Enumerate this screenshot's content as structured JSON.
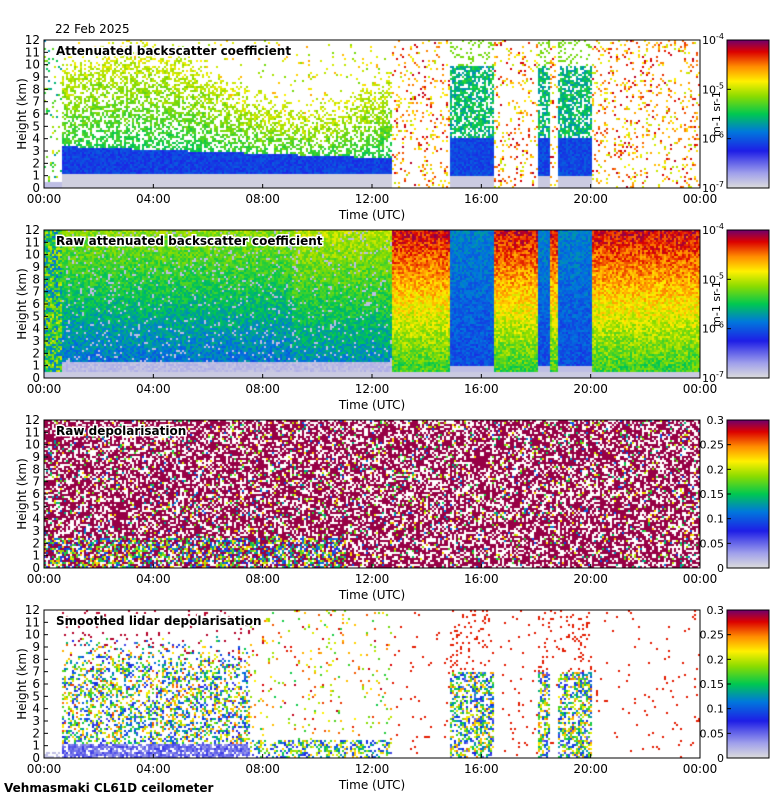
{
  "date": "22 Feb 2025",
  "footer": "Vehmasmaki CL61D ceilometer",
  "chart_data": [
    {
      "type": "heatmap",
      "title": "Attenuated backscatter coefficient",
      "xlabel": "Time (UTC)",
      "ylabel": "Height (km)",
      "x_ticks": [
        "00:00",
        "04:00",
        "08:00",
        "12:00",
        "16:00",
        "20:00",
        "00:00"
      ],
      "y_ticks": [
        "0",
        "1",
        "2",
        "3",
        "4",
        "5",
        "6",
        "7",
        "8",
        "9",
        "10",
        "11",
        "12"
      ],
      "ylim": [
        0,
        12
      ],
      "colorbar": {
        "scale": "log",
        "ticks": [
          "10",
          "10",
          "10",
          "10"
        ],
        "exponents": [
          "-7",
          "-6",
          "-5",
          "-4"
        ],
        "label": "m-1 sr-1",
        "range": [
          1e-07,
          0.0001
        ]
      },
      "gap_intervals_h": [
        [
          12.7,
          14.8
        ],
        [
          16.4,
          18.0
        ],
        [
          18.5,
          18.8
        ],
        [
          20.0,
          24.0
        ]
      ],
      "cloud_intervals_h": [
        [
          14.8,
          16.4
        ],
        [
          18.0,
          18.5
        ],
        [
          18.8,
          20.0
        ]
      ]
    },
    {
      "type": "heatmap",
      "title": "Raw attenuated backscatter coefficient",
      "xlabel": "Time (UTC)",
      "ylabel": "Height (km)",
      "x_ticks": [
        "00:00",
        "04:00",
        "08:00",
        "12:00",
        "16:00",
        "20:00",
        "00:00"
      ],
      "y_ticks": [
        "0",
        "1",
        "2",
        "3",
        "4",
        "5",
        "6",
        "7",
        "8",
        "9",
        "10",
        "11",
        "12"
      ],
      "ylim": [
        0,
        12
      ],
      "colorbar": {
        "scale": "log",
        "ticks": [
          "10",
          "10",
          "10",
          "10"
        ],
        "exponents": [
          "-7",
          "-6",
          "-5",
          "-4"
        ],
        "label": "m-1 sr-1",
        "range": [
          1e-07,
          0.0001
        ]
      }
    },
    {
      "type": "heatmap",
      "title": "Raw depolarisation",
      "xlabel": "Time (UTC)",
      "ylabel": "Height (km)",
      "x_ticks": [
        "00:00",
        "04:00",
        "08:00",
        "12:00",
        "16:00",
        "20:00",
        "00:00"
      ],
      "y_ticks": [
        "0",
        "1",
        "2",
        "3",
        "4",
        "5",
        "6",
        "7",
        "8",
        "9",
        "10",
        "11",
        "12"
      ],
      "ylim": [
        0,
        12
      ],
      "colorbar": {
        "scale": "linear",
        "ticks": [
          "0",
          "0.05",
          "0.1",
          "0.15",
          "0.2",
          "0.25",
          "0.3"
        ],
        "range": [
          0,
          0.3
        ]
      }
    },
    {
      "type": "heatmap",
      "title": "Smoothed lidar depolarisation",
      "xlabel": "Time (UTC)",
      "ylabel": "Height (km)",
      "x_ticks": [
        "00:00",
        "04:00",
        "08:00",
        "12:00",
        "16:00",
        "20:00",
        "00:00"
      ],
      "y_ticks": [
        "0",
        "1",
        "2",
        "3",
        "4",
        "5",
        "6",
        "7",
        "8",
        "9",
        "10",
        "11",
        "12"
      ],
      "ylim": [
        0,
        12
      ],
      "colorbar": {
        "scale": "linear",
        "ticks": [
          "0",
          "0.05",
          "0.1",
          "0.15",
          "0.2",
          "0.25",
          "0.3"
        ],
        "range": [
          0,
          0.3
        ]
      }
    }
  ]
}
